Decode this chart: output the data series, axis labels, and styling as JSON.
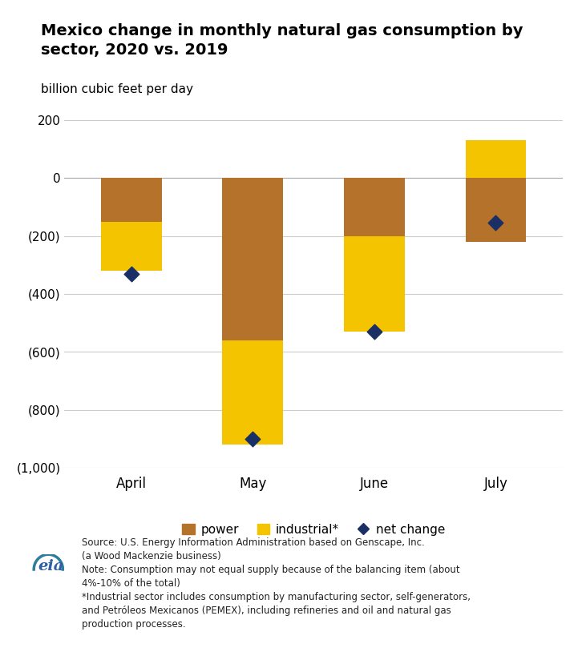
{
  "title": "Mexico change in monthly natural gas consumption by\nsector, 2020 vs. 2019",
  "subtitle": "billion cubic feet per day",
  "categories": [
    "April",
    "May",
    "June",
    "July"
  ],
  "power_values": [
    -150,
    -560,
    -200,
    -220
  ],
  "industrial_values": [
    -170,
    -360,
    -330,
    130
  ],
  "net_change_values": [
    -330,
    -900,
    -530,
    -155
  ],
  "power_color": "#b5722b",
  "industrial_color": "#f5c400",
  "net_change_color": "#1a3065",
  "ylim": [
    -1000,
    200
  ],
  "yticks": [
    200,
    0,
    -200,
    -400,
    -600,
    -800,
    -1000
  ],
  "ytick_labels": [
    "200",
    "0",
    "(200)",
    "(400)",
    "(600)",
    "(800)",
    "(1,000)"
  ],
  "background_color": "#ffffff",
  "legend_labels": [
    "power",
    "industrial*",
    "net change"
  ],
  "source_text": "Source: U.S. Energy Information Administration based on Genscape, Inc.\n(a Wood Mackenzie business)\nNote: Consumption may not equal supply because of the balancing item (about\n4%-10% of the total)\n*Industrial sector includes consumption by manufacturing sector, self-generators,\nand Petróleos Mexicanos (PEMEX), including refineries and oil and natural gas\nproduction processes.",
  "bar_width": 0.5
}
